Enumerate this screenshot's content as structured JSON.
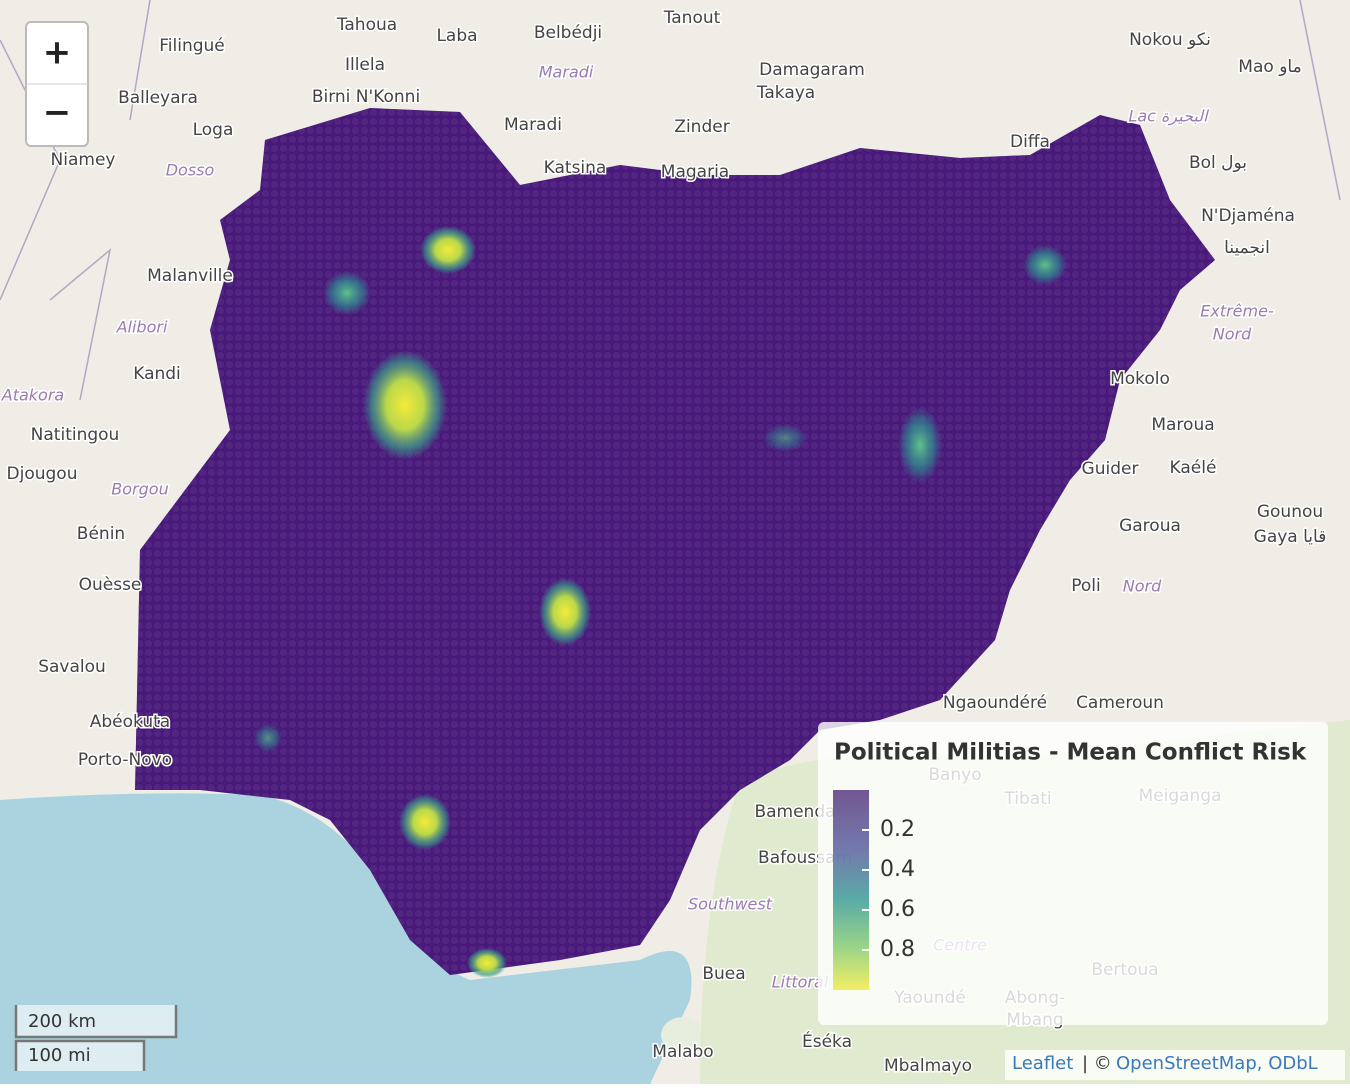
{
  "zoom": {
    "in": "+",
    "out": "−"
  },
  "labels": [
    "Tahoua",
    "Laba",
    "Belbédji",
    "Tanout",
    "Nokou نكو",
    "Mao ماو",
    "Filingué",
    "Illela",
    "Maradi",
    "Damagaram",
    "Takaya",
    "Balleyara",
    "Birni N'Konni",
    "Loga",
    "Maradi",
    "Zinder",
    "Lac البحيرة",
    "Niamey",
    "Dosso",
    "Katsina",
    "Magaria",
    "Diffa",
    "Bol بول",
    "N'Djaména",
    "انجمينا",
    "Malanville",
    "Alibori",
    "Extrême-",
    "Nord",
    "Kandi",
    "Mokolo",
    "Atakora",
    "Natitingou",
    "Maroua",
    "Djougou",
    "Guider",
    "Kaélé",
    "Borgou",
    "Garoua",
    "Gounou",
    "Gaya قايا",
    "Bénin",
    "Ouèsse",
    "Poli",
    "Nord",
    "Savalou",
    "Cameroun",
    "Abéokuta",
    "Porto-Novo",
    "Banyo",
    "Tibati",
    "Meiganga",
    "Bamenda",
    "Bafoussam",
    "Southwest",
    "Centre",
    "Buea",
    "Littoral",
    "Yaoundé",
    "Bertoua",
    "Abong-",
    "Mbang",
    "Malabo",
    "Éséka",
    "Mbalmayo",
    "Ngaoundéré"
  ],
  "legend": {
    "title": "Political Militias - Mean Conflict Risk",
    "range": [
      0,
      1
    ],
    "ticks": [
      0.2,
      0.4,
      0.6,
      0.8
    ]
  },
  "scale": {
    "metric": "200 km",
    "imperial": "100 mi"
  },
  "attribution": {
    "leaflet": "Leaflet",
    "sep": "| ©",
    "osm": "OpenStreetMap, ODbL"
  }
}
